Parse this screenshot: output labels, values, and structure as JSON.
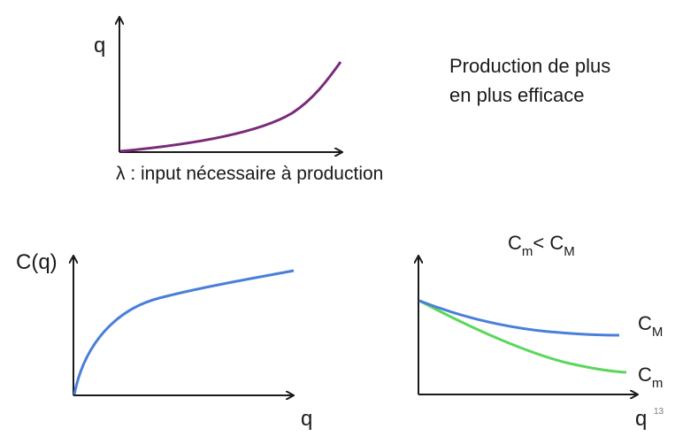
{
  "top_panel": {
    "y_axis_label": "q",
    "x_axis_caption": "λ : input nécessaire à production"
  },
  "statement": {
    "line1": "Production de plus",
    "line2": "en plus efficace"
  },
  "bottom_left_panel": {
    "y_axis_label": "C(q)",
    "x_axis_label": "q"
  },
  "bottom_right_panel": {
    "title_main_1": "C",
    "title_sub_1": "m",
    "title_relation": "< ",
    "title_main_2": "C",
    "title_sub_2": "M",
    "curve_upper_main": "C",
    "curve_upper_sub": "M",
    "curve_lower_main": "C",
    "curve_lower_sub": "m",
    "x_axis_label": "q"
  },
  "page_number": "13",
  "colors": {
    "axis": "#1a1a1a",
    "production_curve": "#7a2a7a",
    "cost_curve": "#4a7fd9",
    "average_cost_curve": "#4a7fd9",
    "marginal_cost_curve": "#5cd65c"
  }
}
